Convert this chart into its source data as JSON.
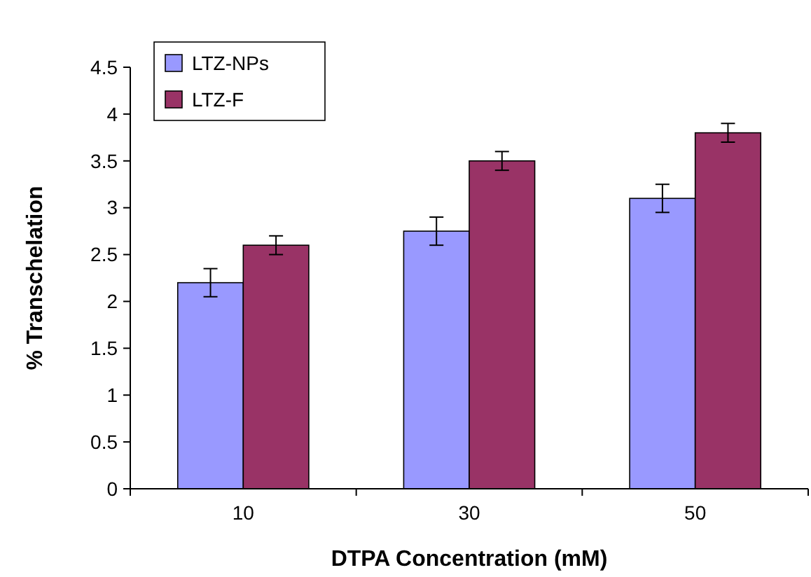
{
  "chart_data": {
    "type": "bar",
    "xlabel": "DTPA Concentration (mM)",
    "ylabel": "% Transchelation",
    "categories": [
      "10",
      "30",
      "50"
    ],
    "series": [
      {
        "name": "LTZ-NPs",
        "color": "#9999ff",
        "values": [
          2.2,
          2.75,
          3.1
        ],
        "errors": [
          0.15,
          0.15,
          0.15
        ]
      },
      {
        "name": "LTZ-F",
        "color": "#993366",
        "values": [
          2.6,
          3.5,
          3.8
        ],
        "errors": [
          0.1,
          0.1,
          0.1
        ]
      }
    ],
    "ylim": [
      0,
      4.5
    ],
    "yticks": [
      0,
      0.5,
      1,
      1.5,
      2,
      2.5,
      3,
      3.5,
      4,
      4.5
    ],
    "grid": false,
    "legend": "top left"
  }
}
